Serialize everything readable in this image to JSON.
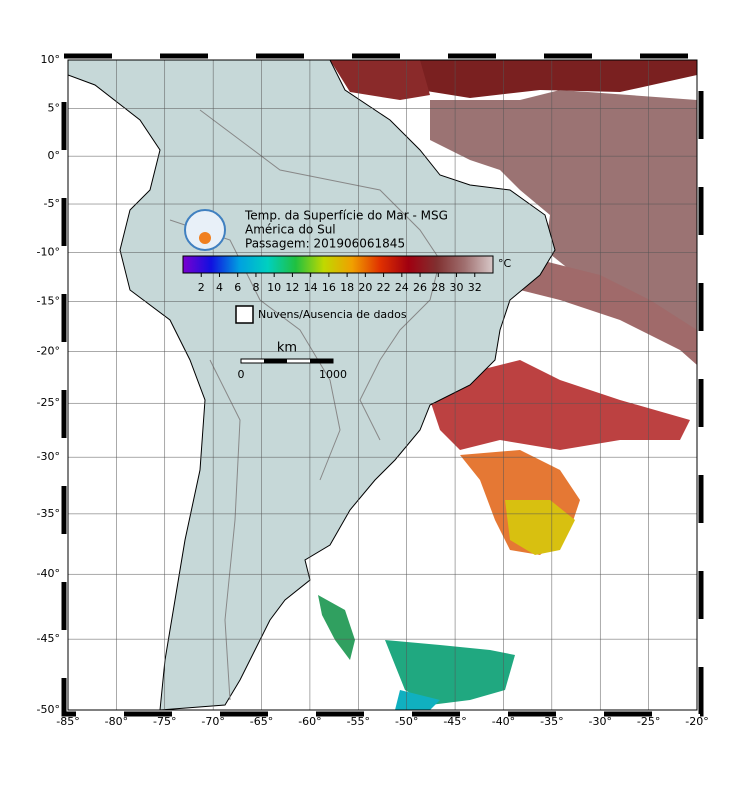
{
  "map": {
    "title_lines": [
      "Temp. da Superfície do Mar - MSG",
      "América do Sul",
      "Passagem: 201906061845"
    ],
    "lon_range": [
      -85,
      -20
    ],
    "lat_range": [
      -50,
      10
    ],
    "lon_ticks": [
      {
        "value": -85,
        "label": "-85°"
      },
      {
        "value": -80,
        "label": "-80°"
      },
      {
        "value": -75,
        "label": "-75°"
      },
      {
        "value": -70,
        "label": "-70°"
      },
      {
        "value": -65,
        "label": "-65°"
      },
      {
        "value": -60,
        "label": "-60°"
      },
      {
        "value": -55,
        "label": "-55°"
      },
      {
        "value": -50,
        "label": "-50°"
      },
      {
        "value": -45,
        "label": "-45°"
      },
      {
        "value": -40,
        "label": "-40°"
      },
      {
        "value": -35,
        "label": "-35°"
      },
      {
        "value": -30,
        "label": "-30°"
      },
      {
        "value": -25,
        "label": "-25°"
      },
      {
        "value": -20,
        "label": "-20°"
      }
    ],
    "lat_ticks": [
      {
        "value": 10,
        "label": "10°"
      },
      {
        "value": 5,
        "label": "5°"
      },
      {
        "value": 0,
        "label": "0°"
      },
      {
        "value": -5,
        "label": "-5°"
      },
      {
        "value": -10,
        "label": "-10°"
      },
      {
        "value": -15,
        "label": "-15°"
      },
      {
        "value": -20,
        "label": "-20°"
      },
      {
        "value": -25,
        "label": "-25°"
      },
      {
        "value": -30,
        "label": "-30°"
      },
      {
        "value": -35,
        "label": "-35°"
      },
      {
        "value": -40,
        "label": "-40°"
      },
      {
        "value": -45,
        "label": "-45°"
      },
      {
        "value": -50,
        "label": "-50°"
      }
    ],
    "colorbar": {
      "unit": "°C",
      "range": [
        0,
        34
      ],
      "ticks": [
        2,
        4,
        6,
        8,
        10,
        12,
        14,
        16,
        18,
        20,
        22,
        24,
        26,
        28,
        30,
        32
      ],
      "colors": [
        "#7a00d0",
        "#1010e0",
        "#00a0e0",
        "#00d0c0",
        "#20c040",
        "#c0d800",
        "#f0a000",
        "#e03000",
        "#a00010",
        "#803030",
        "#a07070",
        "#d8c8c8"
      ]
    },
    "legend": "Nuvens/Ausencia de dados",
    "scale_bar": {
      "unit": "km",
      "start_label": "0",
      "end_label": "1000"
    }
  }
}
